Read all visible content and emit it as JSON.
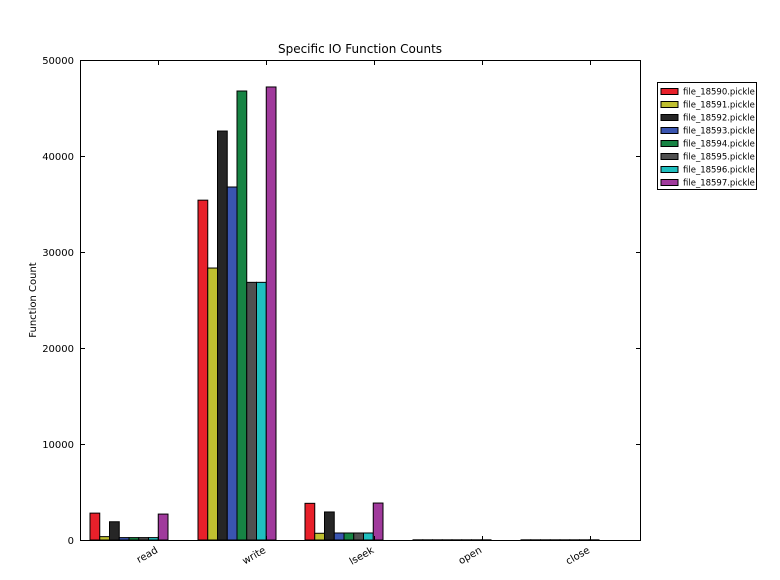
{
  "chart_data": {
    "type": "bar",
    "title": "Specific IO Function Counts",
    "xlabel": "",
    "ylabel": "Function Count",
    "ylim": [
      0,
      50000
    ],
    "yticks": [
      0,
      10000,
      20000,
      30000,
      40000,
      50000
    ],
    "grid": false,
    "legend_position": "upper right, outside plot",
    "categories": [
      "read",
      "write",
      "lseek",
      "open",
      "close"
    ],
    "series": [
      {
        "name": "file_18590.pickle",
        "color": "#e8202a",
        "values": [
          2800,
          35400,
          3820,
          20,
          20
        ]
      },
      {
        "name": "file_18591.pickle",
        "color": "#bfbf30",
        "values": [
          350,
          28330,
          700,
          20,
          20
        ]
      },
      {
        "name": "file_18592.pickle",
        "color": "#262626",
        "values": [
          1900,
          42600,
          2920,
          20,
          20
        ]
      },
      {
        "name": "file_18593.pickle",
        "color": "#3a55b0",
        "values": [
          250,
          36770,
          730,
          20,
          20
        ]
      },
      {
        "name": "file_18594.pickle",
        "color": "#178444",
        "values": [
          250,
          46770,
          730,
          20,
          20
        ]
      },
      {
        "name": "file_18595.pickle",
        "color": "#505050",
        "values": [
          250,
          26840,
          730,
          20,
          20
        ]
      },
      {
        "name": "file_18596.pickle",
        "color": "#1fbfbf",
        "values": [
          250,
          26840,
          730,
          20,
          20
        ]
      },
      {
        "name": "file_18597.pickle",
        "color": "#a03a9c",
        "values": [
          2700,
          47190,
          3850,
          20,
          20
        ]
      }
    ]
  }
}
